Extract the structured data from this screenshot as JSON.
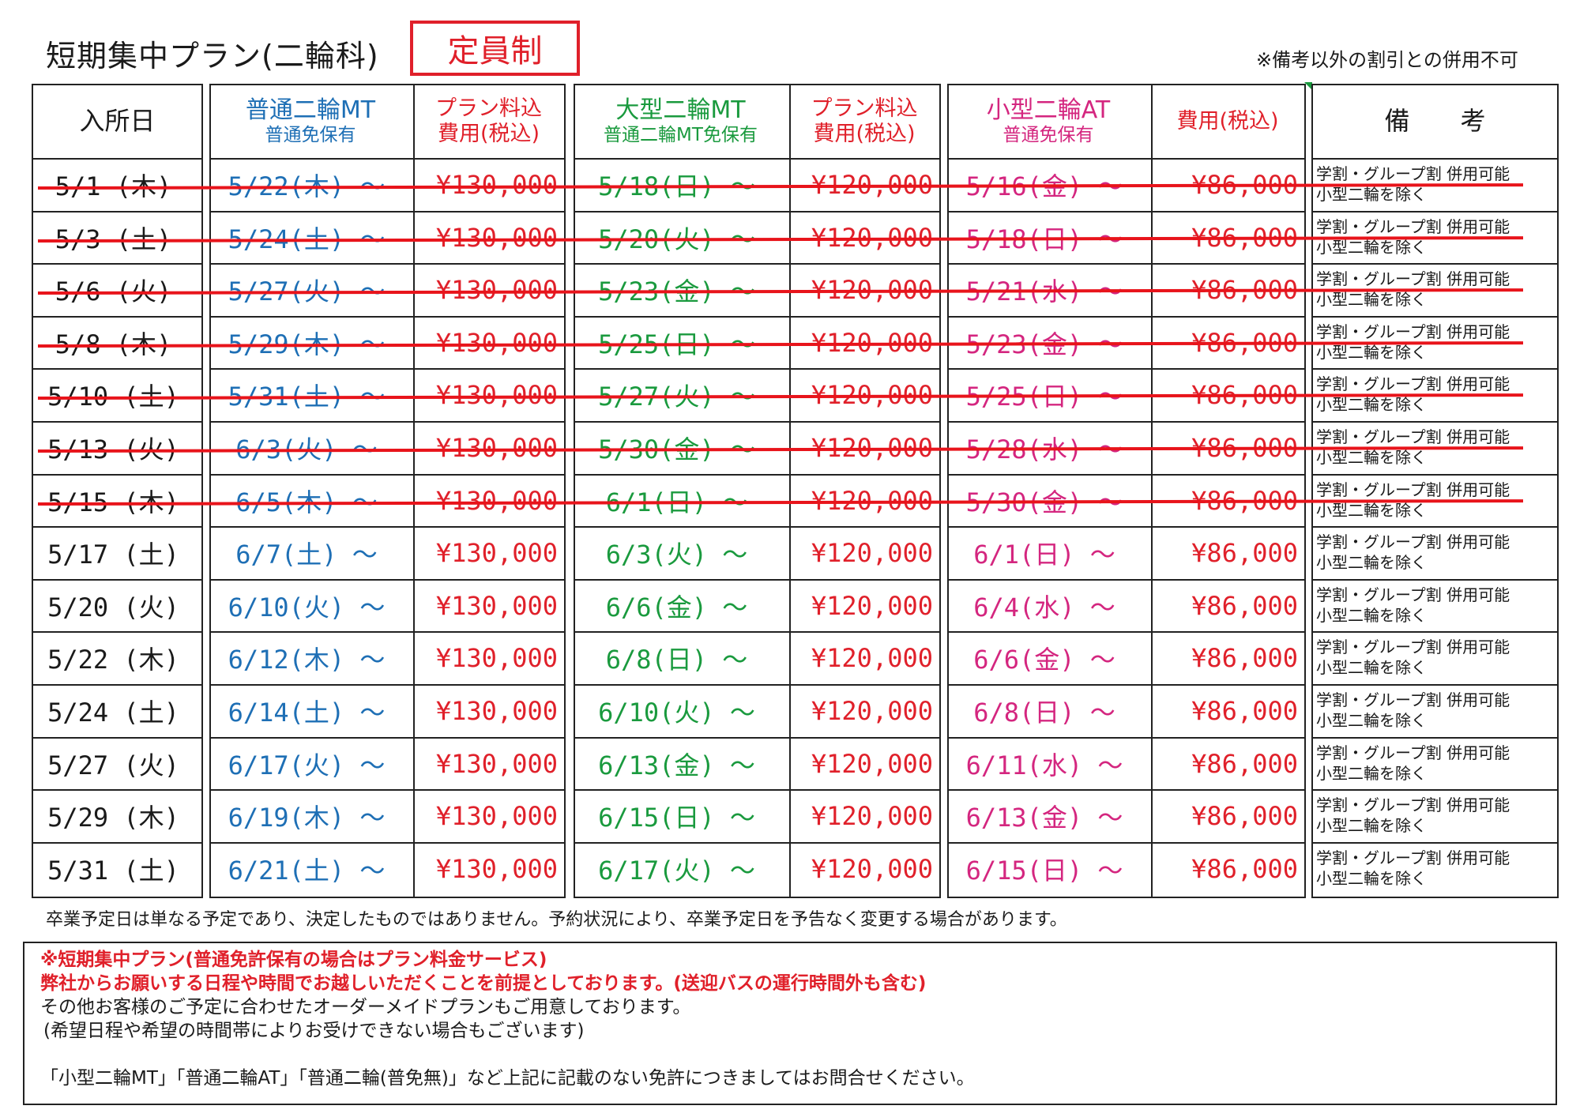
{
  "title": "短期集中プラン(二輪科)",
  "badge": "定員制",
  "note_top": "※備考以外の割引との併用不可",
  "headers": {
    "entry": "入所日",
    "std_mt_l1": "普通二輪MT",
    "std_mt_l2": "普通免保有",
    "plan_fee_l1": "プラン料込",
    "plan_fee_l2": "費用(税込)",
    "large_mt_l1": "大型二輪MT",
    "large_mt_l2": "普通二輪MT免保有",
    "plan_fee2_l1": "プラン料込",
    "plan_fee2_l2": "費用(税込)",
    "small_at_l1": "小型二輪AT",
    "small_at_l2": "普通免保有",
    "fee3": "費用(税込)",
    "remarks": "備　　考"
  },
  "rows": [
    {
      "entry": "5/1 (木)",
      "std": "5/22(木) ～",
      "fee1": "¥130,000",
      "large": "5/18(日) ～",
      "fee2": "¥120,000",
      "small": "5/16(金) ～",
      "fee3": "¥86,000",
      "r1": "学割・グループ割 併用可能",
      "r2": "小型二輪を除く",
      "struck": true
    },
    {
      "entry": "5/3 (土)",
      "std": "5/24(土) ～",
      "fee1": "¥130,000",
      "large": "5/20(火) ～",
      "fee2": "¥120,000",
      "small": "5/18(日) ～",
      "fee3": "¥86,000",
      "r1": "学割・グループ割 併用可能",
      "r2": "小型二輪を除く",
      "struck": true
    },
    {
      "entry": "5/6 (火)",
      "std": "5/27(火) ～",
      "fee1": "¥130,000",
      "large": "5/23(金) ～",
      "fee2": "¥120,000",
      "small": "5/21(水) ～",
      "fee3": "¥86,000",
      "r1": "学割・グループ割 併用可能",
      "r2": "小型二輪を除く",
      "struck": true
    },
    {
      "entry": "5/8 (木)",
      "std": "5/29(木) ～",
      "fee1": "¥130,000",
      "large": "5/25(日) ～",
      "fee2": "¥120,000",
      "small": "5/23(金) ～",
      "fee3": "¥86,000",
      "r1": "学割・グループ割 併用可能",
      "r2": "小型二輪を除く",
      "struck": true
    },
    {
      "entry": "5/10 (土)",
      "std": "5/31(土) ～",
      "fee1": "¥130,000",
      "large": "5/27(火) ～",
      "fee2": "¥120,000",
      "small": "5/25(日) ～",
      "fee3": "¥86,000",
      "r1": "学割・グループ割 併用可能",
      "r2": "小型二輪を除く",
      "struck": true
    },
    {
      "entry": "5/13 (火)",
      "std": "6/3(火) ～",
      "fee1": "¥130,000",
      "large": "5/30(金) ～",
      "fee2": "¥120,000",
      "small": "5/28(水) ～",
      "fee3": "¥86,000",
      "r1": "学割・グループ割 併用可能",
      "r2": "小型二輪を除く",
      "struck": true
    },
    {
      "entry": "5/15 (木)",
      "std": "6/5(木) ～",
      "fee1": "¥130,000",
      "large": "6/1(日) ～",
      "fee2": "¥120,000",
      "small": "5/30(金) ～",
      "fee3": "¥86,000",
      "r1": "学割・グループ割 併用可能",
      "r2": "小型二輪を除く",
      "struck": true
    },
    {
      "entry": "5/17 (土)",
      "std": "6/7(土) ～",
      "fee1": "¥130,000",
      "large": "6/3(火) ～",
      "fee2": "¥120,000",
      "small": "6/1(日) ～",
      "fee3": "¥86,000",
      "r1": "学割・グループ割 併用可能",
      "r2": "小型二輪を除く",
      "struck": false
    },
    {
      "entry": "5/20 (火)",
      "std": "6/10(火) ～",
      "fee1": "¥130,000",
      "large": "6/6(金) ～",
      "fee2": "¥120,000",
      "small": "6/4(水) ～",
      "fee3": "¥86,000",
      "r1": "学割・グループ割 併用可能",
      "r2": "小型二輪を除く",
      "struck": false
    },
    {
      "entry": "5/22 (木)",
      "std": "6/12(木) ～",
      "fee1": "¥130,000",
      "large": "6/8(日) ～",
      "fee2": "¥120,000",
      "small": "6/6(金) ～",
      "fee3": "¥86,000",
      "r1": "学割・グループ割 併用可能",
      "r2": "小型二輪を除く",
      "struck": false
    },
    {
      "entry": "5/24 (土)",
      "std": "6/14(土) ～",
      "fee1": "¥130,000",
      "large": "6/10(火) ～",
      "fee2": "¥120,000",
      "small": "6/8(日) ～",
      "fee3": "¥86,000",
      "r1": "学割・グループ割 併用可能",
      "r2": "小型二輪を除く",
      "struck": false
    },
    {
      "entry": "5/27 (火)",
      "std": "6/17(火) ～",
      "fee1": "¥130,000",
      "large": "6/13(金) ～",
      "fee2": "¥120,000",
      "small": "6/11(水) ～",
      "fee3": "¥86,000",
      "r1": "学割・グループ割 併用可能",
      "r2": "小型二輪を除く",
      "struck": false
    },
    {
      "entry": "5/29 (木)",
      "std": "6/19(木) ～",
      "fee1": "¥130,000",
      "large": "6/15(日) ～",
      "fee2": "¥120,000",
      "small": "6/13(金) ～",
      "fee3": "¥86,000",
      "r1": "学割・グループ割 併用可能",
      "r2": "小型二輪を除く",
      "struck": false
    },
    {
      "entry": "5/31 (土)",
      "std": "6/21(土) ～",
      "fee1": "¥130,000",
      "large": "6/17(火) ～",
      "fee2": "¥120,000",
      "small": "6/15(日) ～",
      "fee3": "¥86,000",
      "r1": "学割・グループ割 併用可能",
      "r2": "小型二輪を除く",
      "struck": false
    }
  ],
  "disclaimer": "卒業予定日は単なる予定であり、決定したものではありません。予約状況により、卒業予定日を予告なく変更する場合があります。",
  "notes": {
    "line1": "※短期集中プラン(普通免許保有の場合はプラン料金サービス)",
    "line2": "弊社からお願いする日程や時間でお越しいただくことを前提としております。(送迎バスの運行時間外も含む)",
    "line3": "その他お客様のご予定に合わせたオーダーメイドプランもご用意しております。",
    "line4": "(希望日程や希望の時間帯によりお受けできない場合もございます)",
    "line5": "「小型二輪MT」「普通二輪AT」「普通二輪(普免無)」など上記に記載のない免許につきましてはお問合せください。"
  },
  "colors": {
    "blue": "#1e6fb5",
    "green": "#1a9a3e",
    "pink": "#d4267f",
    "red": "#e0202a",
    "strike": "#e8141b"
  }
}
